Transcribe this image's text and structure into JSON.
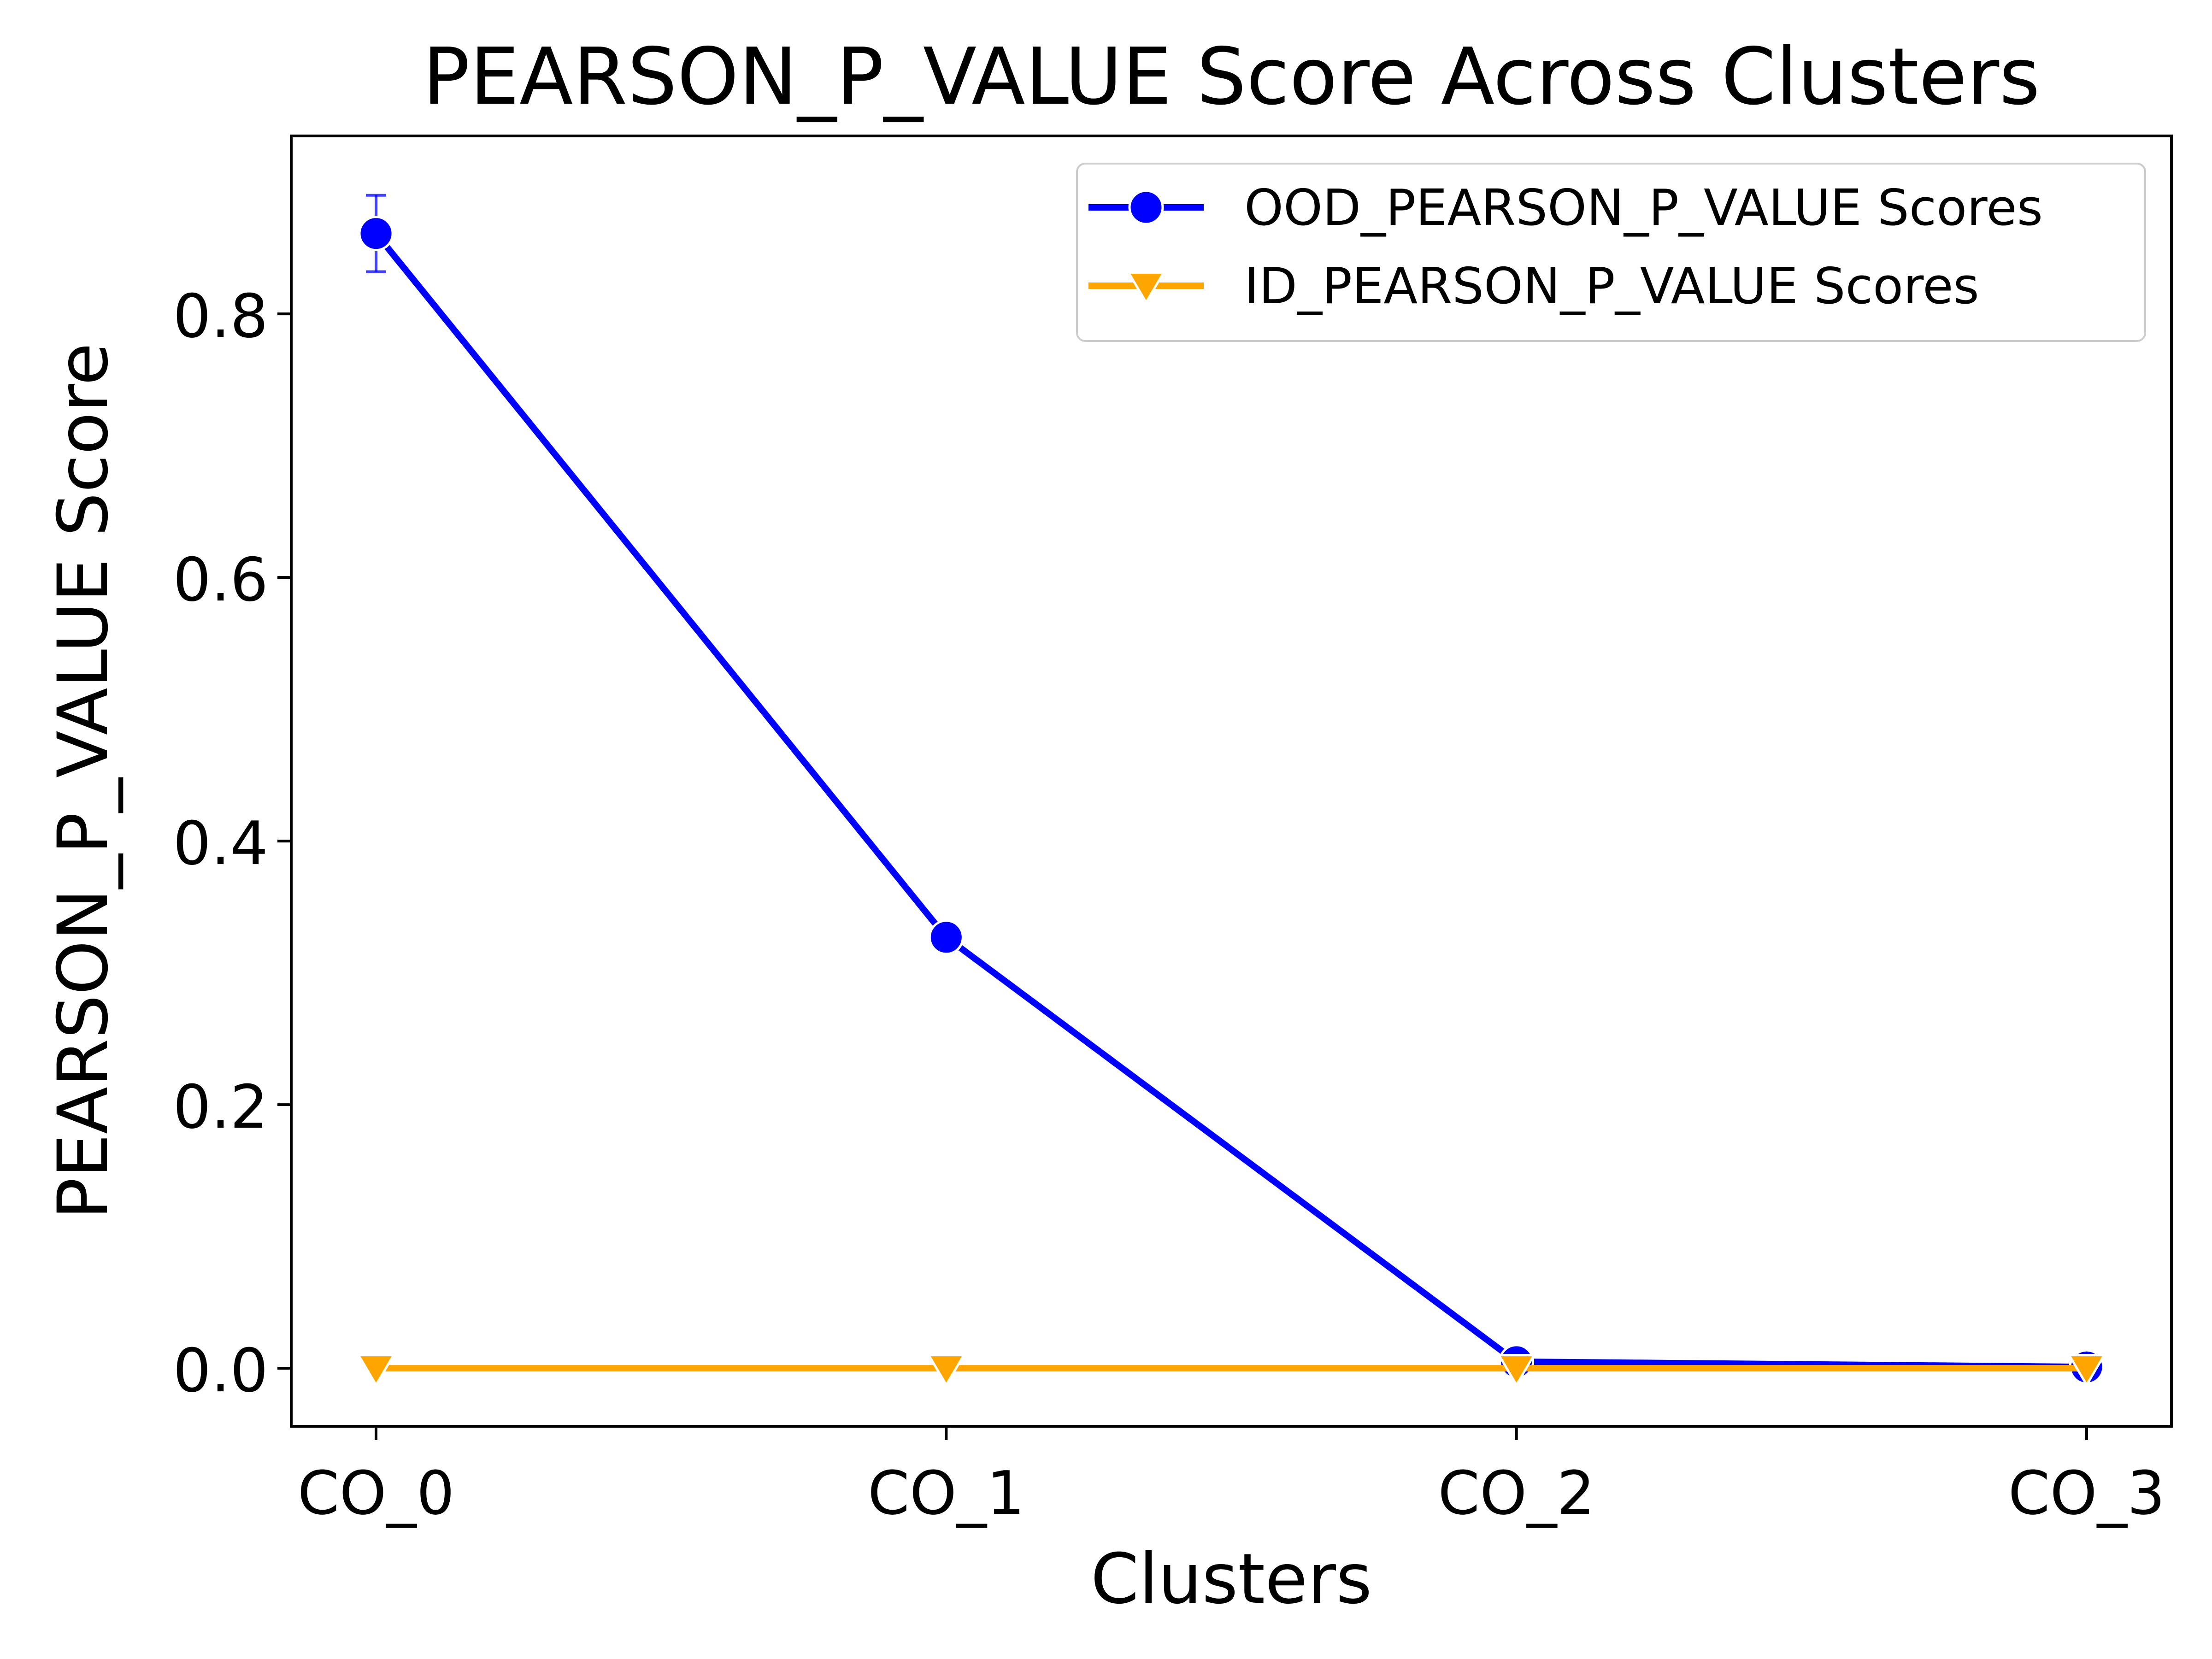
{
  "chart_data": {
    "type": "line",
    "title": "PEARSON_P_VALUE Score Across Clusters",
    "xlabel": "Clusters",
    "ylabel": "PEARSON_P_VALUE Score",
    "categories": [
      "CO_0",
      "CO_1",
      "CO_2",
      "CO_3"
    ],
    "ylim": [
      -0.044,
      0.935
    ],
    "yticks": [
      0.0,
      0.2,
      0.4,
      0.6,
      0.8
    ],
    "ytick_labels": [
      "0.0",
      "0.2",
      "0.4",
      "0.6",
      "0.8"
    ],
    "grid": false,
    "legend_position": "top-right",
    "series": [
      {
        "name": "OOD_PEARSON_P_VALUE Scores",
        "color": "#0000ff",
        "marker": "circle",
        "values": [
          0.861,
          0.327,
          0.005,
          0.001
        ],
        "error": [
          0.029,
          0.0,
          0.0,
          0.0
        ]
      },
      {
        "name": "ID_PEARSON_P_VALUE Scores",
        "color": "#ffa500",
        "marker": "triangle-down",
        "values": [
          0.0,
          0.0,
          0.0,
          0.0
        ],
        "error": [
          0.0,
          0.0,
          0.0,
          0.0
        ]
      }
    ]
  }
}
